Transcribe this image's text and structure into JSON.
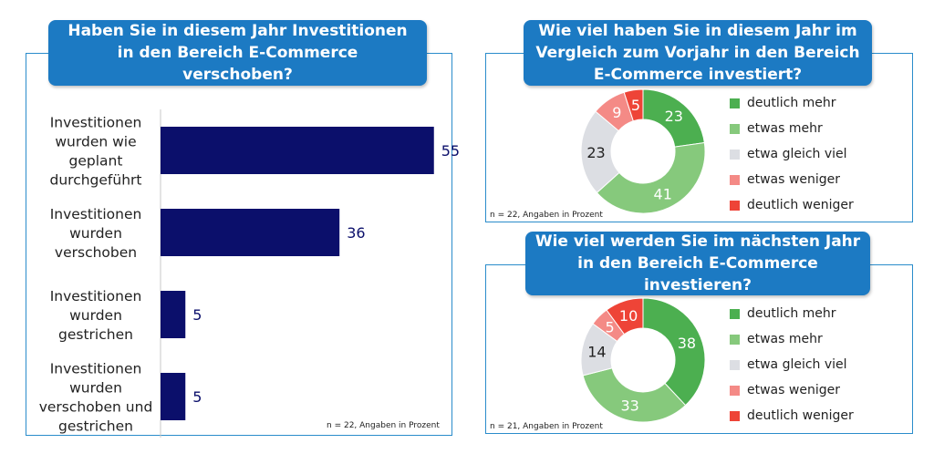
{
  "left": {
    "title": "Haben Sie in diesem Jahr Investitionen in den Bereich E-Commerce verschoben?",
    "note": "n = 22, Angaben in Prozent"
  },
  "right_top": {
    "title": "Wie viel haben Sie in diesem Jahr im Vergleich zum Vorjahr in den Bereich E-Commerce investiert?",
    "note": "n = 22, Angaben in Prozent"
  },
  "right_bottom": {
    "title": "Wie viel werden Sie im nächsten Jahr in den Bereich E-Commerce investieren?",
    "note": "n = 21, Angaben in Prozent"
  },
  "colors": {
    "bar": "#0b0f6b",
    "panel_border": "#2a8ccb",
    "title_bg": "#1c7ac3",
    "deutlich_mehr": "#4caf50",
    "etwas_mehr": "#86c97c",
    "etwa_gleich_viel": "#dcdee3",
    "etwas_weniger": "#f48a86",
    "deutlich_weniger": "#ee4437"
  },
  "chart_data": [
    {
      "type": "bar",
      "orientation": "horizontal",
      "categories": [
        "Investitionen wurden wie geplant durchgeführt",
        "Investitionen wurden verschoben",
        "Investitionen wurden gestrichen",
        "Investitionen wurden verschoben und gestrichen"
      ],
      "category_lines": [
        [
          "Investitionen",
          "wurden wie",
          "geplant",
          "durchgeführt"
        ],
        [
          "Investitionen",
          "wurden",
          "verschoben"
        ],
        [
          "Investitionen",
          "wurden",
          "gestrichen"
        ],
        [
          "Investitionen",
          "wurden",
          "verschoben und",
          "gestrichen"
        ]
      ],
      "values": [
        55,
        36,
        5,
        5
      ],
      "xlim": [
        0,
        100
      ]
    },
    {
      "type": "pie",
      "donut": true,
      "labels": [
        "deutlich mehr",
        "etwas mehr",
        "etwa gleich viel",
        "etwas weniger",
        "deutlich weniger"
      ],
      "values": [
        23,
        41,
        23,
        9,
        5
      ]
    },
    {
      "type": "pie",
      "donut": true,
      "labels": [
        "deutlich mehr",
        "etwas mehr",
        "etwa gleich viel",
        "etwas weniger",
        "deutlich weniger"
      ],
      "values": [
        38,
        33,
        14,
        5,
        10
      ]
    }
  ]
}
